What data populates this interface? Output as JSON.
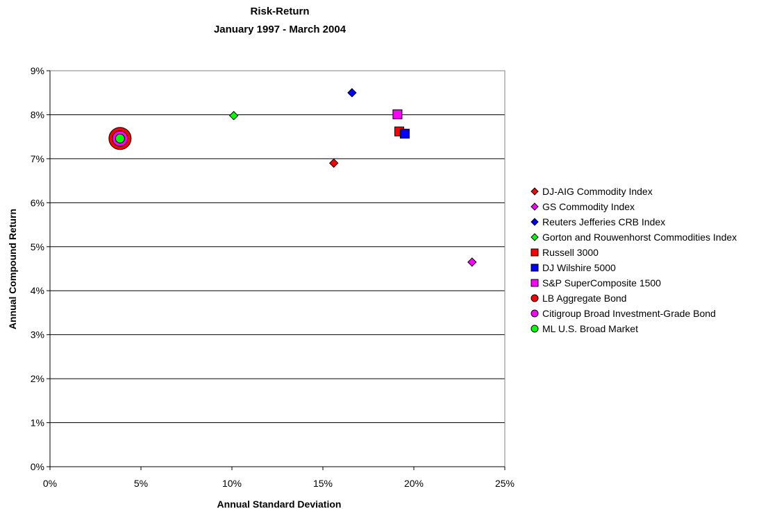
{
  "chart_data": {
    "type": "scatter",
    "title": "Risk-Return",
    "subtitle": "January 1997 - March 2004",
    "xlabel": "Annual Standard Deviation",
    "ylabel": "Annual Compound Return",
    "xlim": [
      0,
      0.25
    ],
    "ylim": [
      0,
      0.09
    ],
    "x_ticks": [
      "0%",
      "5%",
      "10%",
      "15%",
      "20%",
      "25%"
    ],
    "y_ticks": [
      "0%",
      "1%",
      "2%",
      "3%",
      "4%",
      "5%",
      "6%",
      "7%",
      "8%",
      "9%"
    ],
    "grid": "horizontal",
    "legend_position": "right",
    "series": [
      {
        "name": "DJ-AIG Commodity Index",
        "marker": "diamond",
        "color": "#ff0000",
        "x": 0.156,
        "y": 0.069
      },
      {
        "name": "GS Commodity Index",
        "marker": "diamond",
        "color": "#ff00ff",
        "x": 0.232,
        "y": 0.0465
      },
      {
        "name": "Reuters Jefferies CRB Index",
        "marker": "diamond",
        "color": "#0000ff",
        "x": 0.166,
        "y": 0.085
      },
      {
        "name": "Gorton and Rouwenhorst Commodities Index",
        "marker": "diamond",
        "color": "#00ff00",
        "x": 0.101,
        "y": 0.0798
      },
      {
        "name": "Russell 3000",
        "marker": "square",
        "color": "#ff0000",
        "x": 0.192,
        "y": 0.0762
      },
      {
        "name": "DJ Wilshire 5000",
        "marker": "square",
        "color": "#0000ff",
        "x": 0.195,
        "y": 0.0757
      },
      {
        "name": "S&P SuperComposite 1500",
        "marker": "square",
        "color": "#ff00ff",
        "x": 0.191,
        "y": 0.0801
      },
      {
        "name": "LB Aggregate Bond",
        "marker": "circle",
        "color": "#ff0000",
        "x": 0.0385,
        "y": 0.0746
      },
      {
        "name": "Citigroup Broad Investment-Grade Bond",
        "marker": "circle",
        "color": "#ff00ff",
        "x": 0.0385,
        "y": 0.0746
      },
      {
        "name": "ML U.S. Broad Market",
        "marker": "circle",
        "color": "#00ff00",
        "x": 0.0385,
        "y": 0.0746
      }
    ]
  }
}
